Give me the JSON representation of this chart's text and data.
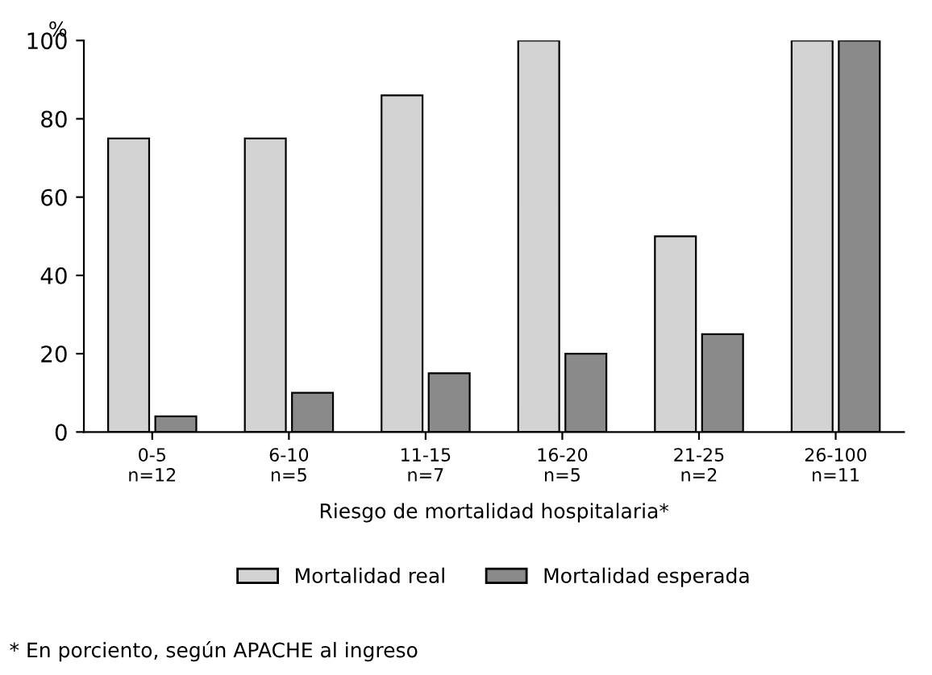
{
  "chart_data": {
    "type": "bar",
    "ylabel": "%",
    "xlabel": "Riesgo de mortalidad hospitalaria*",
    "categories": [
      "0-5\nn=12",
      "6-10\nn=5",
      "11-15\nn=7",
      "16-20\nn=5",
      "21-25\nn=2",
      "26-100\nn=11"
    ],
    "series": [
      {
        "name": "Mortalidad real",
        "color": "#d3d3d3",
        "values": [
          75,
          75,
          86,
          100,
          50,
          100
        ]
      },
      {
        "name": "Mortalidad esperada",
        "color": "#8a8a8a",
        "values": [
          4,
          10,
          15,
          20,
          25,
          100
        ]
      }
    ],
    "ylim": [
      0,
      100
    ],
    "yticks": [
      0,
      20,
      40,
      60,
      80,
      100
    ],
    "grid": false,
    "legend": "bottom",
    "annotations": [
      "* En porciento, según APACHE al ingreso"
    ]
  }
}
